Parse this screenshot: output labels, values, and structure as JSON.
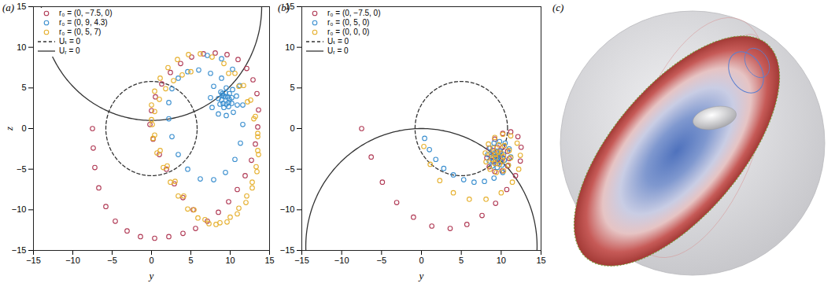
{
  "chart_data": [
    {
      "type": "scatter",
      "title": "(a)",
      "xlabel": "y",
      "ylabel": "z",
      "xlim": [
        -15,
        15
      ],
      "ylim": [
        -15,
        15
      ],
      "xticks": [
        -15,
        -10,
        -5,
        0,
        5,
        10,
        15
      ],
      "yticks": [
        -15,
        -10,
        -5,
        0,
        5,
        10,
        15
      ],
      "legend": "top-left",
      "series": [
        {
          "name": "r₀ = (0, −7.5, 0)",
          "color": "#b03a55",
          "marker": "circle",
          "points": [
            [
              -7.5,
              0
            ],
            [
              -7.4,
              -2.4
            ],
            [
              -7.2,
              -4.8
            ],
            [
              -6.7,
              -7.3
            ],
            [
              -5.8,
              -9.6
            ],
            [
              -4.6,
              -11.4
            ],
            [
              -3.1,
              -12.6
            ],
            [
              -1.4,
              -13.3
            ],
            [
              0.4,
              -13.5
            ],
            [
              2.2,
              -13.3
            ],
            [
              4.0,
              -12.9
            ],
            [
              5.6,
              -12.3
            ],
            [
              7.1,
              -11.4
            ],
            [
              8.5,
              -10.3
            ],
            [
              9.8,
              -9.0
            ],
            [
              10.9,
              -7.5
            ],
            [
              11.9,
              -5.8
            ],
            [
              12.7,
              -3.9
            ],
            [
              13.2,
              -1.9
            ],
            [
              13.5,
              0.2
            ],
            [
              13.6,
              2.3
            ],
            [
              13.4,
              4.3
            ],
            [
              12.9,
              6.0
            ],
            [
              12.1,
              7.4
            ],
            [
              11.0,
              8.5
            ],
            [
              9.6,
              9.1
            ],
            [
              8.1,
              9.3
            ],
            [
              6.6,
              9.2
            ],
            [
              5.1,
              8.8
            ],
            [
              3.7,
              8.0
            ],
            [
              2.4,
              6.9
            ],
            [
              1.3,
              5.5
            ],
            [
              0.5,
              3.9
            ],
            [
              0.0,
              2.2
            ],
            [
              -0.2,
              0.5
            ],
            [
              0.2,
              -1.3
            ],
            [
              1.0,
              -3.2
            ],
            [
              1.9,
              -5.0
            ],
            [
              2.9,
              -6.8
            ],
            [
              4.0,
              -8.5
            ],
            [
              5.3,
              -10.0
            ]
          ]
        },
        {
          "name": "r₀ = (0, 9, 4.3)",
          "color": "#3b8fcf",
          "marker": "circle",
          "points": [
            [
              9.0,
              4.3
            ],
            [
              9.2,
              4.0
            ],
            [
              9.4,
              3.9
            ],
            [
              9.7,
              3.9
            ],
            [
              9.9,
              3.6
            ],
            [
              9.8,
              3.2
            ],
            [
              9.5,
              3.0
            ],
            [
              9.1,
              3.1
            ],
            [
              8.9,
              3.5
            ],
            [
              9.0,
              4.1
            ],
            [
              9.4,
              4.4
            ],
            [
              9.9,
              4.3
            ],
            [
              10.2,
              3.8
            ],
            [
              10.2,
              3.1
            ],
            [
              9.8,
              2.7
            ],
            [
              9.2,
              2.6
            ],
            [
              8.7,
              3.0
            ],
            [
              8.5,
              3.7
            ],
            [
              8.8,
              4.5
            ],
            [
              9.5,
              5.0
            ],
            [
              10.3,
              4.8
            ],
            [
              10.8,
              4.0
            ],
            [
              10.9,
              2.9
            ],
            [
              10.4,
              2.0
            ],
            [
              9.5,
              1.6
            ],
            [
              8.5,
              1.8
            ],
            [
              7.7,
              2.6
            ],
            [
              7.5,
              3.8
            ],
            [
              7.9,
              5.2
            ],
            [
              8.9,
              6.2
            ],
            [
              7.5,
              6.8
            ],
            [
              6.0,
              7.2
            ],
            [
              4.6,
              7.0
            ],
            [
              3.4,
              6.2
            ],
            [
              2.6,
              4.9
            ],
            [
              2.2,
              3.2
            ],
            [
              2.2,
              1.2
            ],
            [
              2.6,
              -1.0
            ],
            [
              3.4,
              -3.2
            ],
            [
              4.6,
              -5.0
            ],
            [
              6.2,
              -6.2
            ],
            [
              7.9,
              -6.3
            ],
            [
              9.4,
              -5.4
            ],
            [
              10.6,
              -3.8
            ],
            [
              11.3,
              -1.8
            ],
            [
              11.6,
              0.5
            ],
            [
              11.6,
              2.9
            ],
            [
              11.2,
              5.3
            ],
            [
              10.3,
              7.3
            ],
            [
              8.9,
              8.6
            ],
            [
              7.1,
              9.0
            ]
          ]
        },
        {
          "name": "r₀ = (0, 5, 7)",
          "color": "#e6b02e",
          "marker": "circle",
          "points": [
            [
              5.0,
              7.0
            ],
            [
              3.9,
              6.6
            ],
            [
              2.8,
              5.9
            ],
            [
              1.8,
              4.9
            ],
            [
              1.0,
              3.6
            ],
            [
              0.4,
              2.1
            ],
            [
              0.1,
              0.5
            ],
            [
              0.2,
              -1.2
            ],
            [
              0.7,
              -3.0
            ],
            [
              1.5,
              -4.8
            ],
            [
              2.4,
              -6.6
            ],
            [
              3.4,
              -8.3
            ],
            [
              4.6,
              -9.9
            ],
            [
              5.9,
              -11.0
            ],
            [
              7.3,
              -11.7
            ],
            [
              8.7,
              -11.6
            ],
            [
              10.0,
              -10.9
            ],
            [
              11.1,
              -9.8
            ],
            [
              12.1,
              -8.3
            ],
            [
              12.8,
              -6.6
            ],
            [
              13.3,
              -4.7
            ],
            [
              13.5,
              -2.7
            ],
            [
              13.5,
              -0.6
            ],
            [
              13.2,
              1.5
            ],
            [
              12.6,
              3.5
            ],
            [
              11.7,
              5.3
            ],
            [
              10.6,
              6.8
            ],
            [
              9.2,
              8.0
            ],
            [
              7.7,
              8.8
            ],
            [
              6.2,
              9.2
            ],
            [
              4.7,
              9.1
            ],
            [
              3.3,
              8.5
            ],
            [
              2.1,
              7.5
            ],
            [
              1.1,
              6.2
            ],
            [
              0.4,
              4.6
            ],
            [
              0.0,
              2.9
            ],
            [
              0.0,
              1.1
            ],
            [
              0.4,
              -0.8
            ],
            [
              1.1,
              -2.7
            ],
            [
              2.0,
              -4.6
            ],
            [
              3.0,
              -6.5
            ],
            [
              4.1,
              -8.3
            ],
            [
              5.4,
              -10.0
            ],
            [
              6.8,
              -11.2
            ],
            [
              8.2,
              -11.8
            ],
            [
              9.6,
              -11.5
            ],
            [
              10.9,
              -10.5
            ],
            [
              12.0,
              -9.1
            ],
            [
              12.8,
              -7.3
            ],
            [
              13.4,
              -5.3
            ],
            [
              13.6,
              -3.2
            ],
            [
              13.5,
              -1.0
            ],
            [
              13.0,
              1.2
            ],
            [
              12.2,
              3.3
            ],
            [
              11.1,
              5.2
            ],
            [
              9.8,
              6.8
            ]
          ]
        }
      ],
      "curves": [
        {
          "name": "Uₜ = 0",
          "color": "#333333",
          "line_style": "dashed",
          "center": [
            0,
            0
          ],
          "radius": 5.8
        },
        {
          "name": "Uᵣ = 0",
          "color": "#333333",
          "line_style": "solid",
          "center": [
            0,
            15
          ],
          "radius": 14
        }
      ]
    },
    {
      "type": "scatter",
      "title": "(b)",
      "xlabel": "y",
      "xlim": [
        -15,
        15
      ],
      "ylim": [
        -15,
        15
      ],
      "xticks": [
        -15,
        -10,
        -5,
        0,
        5,
        10,
        15
      ],
      "yticks": [
        -15,
        -10,
        -5,
        0,
        5,
        10,
        15
      ],
      "legend": "top-left",
      "series": [
        {
          "name": "r₀ = (0, −7.5, 0)",
          "color": "#b03a55",
          "marker": "circle",
          "points": [
            [
              -7.5,
              0
            ],
            [
              -6.3,
              -3.5
            ],
            [
              -4.9,
              -6.6
            ],
            [
              -3.1,
              -9.1
            ],
            [
              -1.0,
              -10.9
            ],
            [
              1.3,
              -12.0
            ],
            [
              3.6,
              -12.3
            ],
            [
              5.7,
              -11.8
            ],
            [
              7.6,
              -10.7
            ],
            [
              9.3,
              -9.2
            ],
            [
              10.7,
              -7.5
            ],
            [
              11.8,
              -5.8
            ],
            [
              12.4,
              -4.0
            ],
            [
              12.5,
              -2.3
            ],
            [
              12.1,
              -1.0
            ],
            [
              11.2,
              -0.4
            ],
            [
              10.2,
              -0.6
            ],
            [
              9.2,
              -1.3
            ],
            [
              8.5,
              -2.4
            ],
            [
              8.2,
              -3.6
            ],
            [
              8.5,
              -4.7
            ],
            [
              9.2,
              -5.3
            ],
            [
              10.1,
              -5.2
            ],
            [
              10.8,
              -4.6
            ],
            [
              11.0,
              -3.7
            ],
            [
              10.8,
              -2.8
            ],
            [
              10.2,
              -2.3
            ],
            [
              9.5,
              -2.3
            ],
            [
              9.0,
              -2.7
            ],
            [
              8.8,
              -3.4
            ],
            [
              9.0,
              -4.0
            ],
            [
              9.5,
              -4.3
            ],
            [
              10.0,
              -4.1
            ],
            [
              10.2,
              -3.6
            ],
            [
              10.0,
              -3.1
            ],
            [
              9.6,
              -3.0
            ],
            [
              9.3,
              -3.2
            ],
            [
              9.3,
              -3.6
            ],
            [
              9.6,
              -3.7
            ]
          ]
        },
        {
          "name": "r₀ = (0, 5, 0)",
          "color": "#3b8fcf",
          "marker": "circle",
          "points": [
            [
              0.4,
              -1.2
            ],
            [
              1.0,
              -2.6
            ],
            [
              1.8,
              -3.8
            ],
            [
              2.8,
              -4.9
            ],
            [
              4.0,
              -5.7
            ],
            [
              5.3,
              -6.3
            ],
            [
              6.6,
              -6.6
            ],
            [
              7.9,
              -6.5
            ],
            [
              9.1,
              -6.1
            ],
            [
              10.2,
              -5.4
            ],
            [
              10.9,
              -4.5
            ],
            [
              11.2,
              -3.5
            ],
            [
              11.0,
              -2.5
            ],
            [
              10.5,
              -1.8
            ],
            [
              9.8,
              -1.6
            ],
            [
              9.1,
              -1.8
            ],
            [
              8.6,
              -2.4
            ],
            [
              8.3,
              -3.2
            ],
            [
              8.5,
              -4.0
            ],
            [
              8.9,
              -4.6
            ],
            [
              9.5,
              -4.8
            ],
            [
              10.1,
              -4.5
            ],
            [
              10.4,
              -3.9
            ],
            [
              10.3,
              -3.2
            ],
            [
              9.9,
              -2.8
            ],
            [
              9.4,
              -2.8
            ],
            [
              9.0,
              -3.1
            ],
            [
              9.0,
              -3.6
            ],
            [
              9.3,
              -4.0
            ],
            [
              9.7,
              -4.0
            ],
            [
              9.9,
              -3.6
            ],
            [
              9.7,
              -3.3
            ],
            [
              9.4,
              -3.4
            ]
          ]
        },
        {
          "name": "r₀ = (0, 0, 0)",
          "color": "#e6b02e",
          "marker": "circle",
          "points": [
            [
              0.3,
              -2.2
            ],
            [
              1.1,
              -4.4
            ],
            [
              2.3,
              -6.4
            ],
            [
              4.0,
              -7.9
            ],
            [
              6.0,
              -8.7
            ],
            [
              8.1,
              -8.7
            ],
            [
              10.0,
              -7.9
            ],
            [
              11.4,
              -6.6
            ],
            [
              12.2,
              -5.0
            ],
            [
              12.4,
              -3.3
            ],
            [
              12.0,
              -1.8
            ],
            [
              11.2,
              -0.9
            ],
            [
              10.2,
              -0.7
            ],
            [
              9.2,
              -1.1
            ],
            [
              8.4,
              -1.9
            ],
            [
              8.0,
              -3.0
            ],
            [
              8.1,
              -4.1
            ],
            [
              8.6,
              -5.0
            ],
            [
              9.4,
              -5.4
            ],
            [
              10.3,
              -5.2
            ],
            [
              10.9,
              -4.5
            ],
            [
              11.2,
              -3.6
            ],
            [
              11.0,
              -2.7
            ],
            [
              10.4,
              -2.1
            ],
            [
              9.7,
              -2.0
            ],
            [
              9.0,
              -2.4
            ],
            [
              8.7,
              -3.1
            ],
            [
              8.8,
              -3.8
            ],
            [
              9.2,
              -4.3
            ],
            [
              9.8,
              -4.4
            ],
            [
              10.2,
              -4.0
            ],
            [
              10.3,
              -3.4
            ],
            [
              10.0,
              -3.0
            ],
            [
              9.6,
              -2.9
            ],
            [
              9.3,
              -3.2
            ],
            [
              9.3,
              -3.6
            ]
          ]
        }
      ],
      "curves": [
        {
          "name": "Uₜ = 0",
          "color": "#333333",
          "line_style": "dashed",
          "center": [
            5,
            0
          ],
          "radius": 5.8
        },
        {
          "name": "Uᵣ = 0",
          "color": "#333333",
          "line_style": "solid",
          "center": [
            0,
            -14.5
          ],
          "radius": 14.5
        }
      ]
    }
  ],
  "image": {
    "title": "(c)"
  }
}
